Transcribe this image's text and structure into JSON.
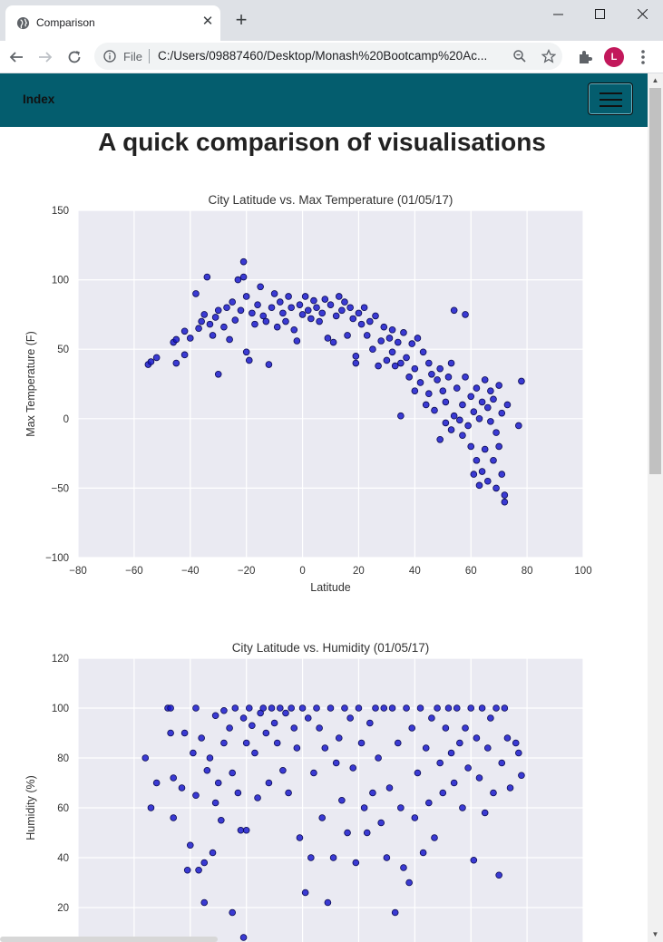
{
  "browser": {
    "tab_title": "Comparison",
    "tab_close": "✕",
    "new_tab": "+",
    "scheme_label": "File",
    "url": "C:/Users/09887460/Desktop/Monash%20Bootcamp%20Ac...",
    "profile_initial": "L"
  },
  "navbar": {
    "brand": "Index"
  },
  "page": {
    "title": "A quick comparison of visualisations"
  },
  "colors": {
    "navbar": "#045d6e",
    "plot_bg": "#eaeaf2",
    "marker": "#1414cc",
    "marker_edge": "#0a0a50"
  },
  "chart_data": [
    {
      "type": "scatter",
      "title": "City Latitude vs. Max Temperature (01/05/17)",
      "xlabel": "Latitude",
      "ylabel": "Max Temperature (F)",
      "xlim": [
        -80,
        100
      ],
      "ylim": [
        -100,
        150
      ],
      "xticks": [
        -80,
        -60,
        -40,
        -20,
        0,
        20,
        40,
        60,
        80,
        100
      ],
      "yticks": [
        -100,
        -50,
        0,
        50,
        100,
        150
      ],
      "xtick_labels": [
        "−80",
        "−60",
        "−40",
        "−20",
        "0",
        "20",
        "40",
        "60",
        "80",
        "100"
      ],
      "ytick_labels": [
        "−100",
        "−50",
        "0",
        "50",
        "100",
        "150"
      ],
      "grid": true,
      "points": [
        [
          -55,
          39
        ],
        [
          -54,
          41
        ],
        [
          -52,
          44
        ],
        [
          -46,
          55
        ],
        [
          -45,
          57
        ],
        [
          -45,
          40
        ],
        [
          -42,
          46
        ],
        [
          -42,
          63
        ],
        [
          -40,
          58
        ],
        [
          -38,
          90
        ],
        [
          -37,
          65
        ],
        [
          -36,
          70
        ],
        [
          -35,
          75
        ],
        [
          -34,
          102
        ],
        [
          -33,
          68
        ],
        [
          -32,
          60
        ],
        [
          -31,
          73
        ],
        [
          -30,
          32
        ],
        [
          -30,
          78
        ],
        [
          -28,
          66
        ],
        [
          -27,
          80
        ],
        [
          -26,
          57
        ],
        [
          -25,
          84
        ],
        [
          -24,
          71
        ],
        [
          -23,
          100
        ],
        [
          -22,
          78
        ],
        [
          -21,
          113
        ],
        [
          -21,
          102
        ],
        [
          -20,
          48
        ],
        [
          -20,
          88
        ],
        [
          -19,
          42
        ],
        [
          -18,
          76
        ],
        [
          -17,
          68
        ],
        [
          -16,
          82
        ],
        [
          -15,
          95
        ],
        [
          -14,
          74
        ],
        [
          -13,
          70
        ],
        [
          -12,
          39
        ],
        [
          -11,
          80
        ],
        [
          -10,
          90
        ],
        [
          -9,
          66
        ],
        [
          -8,
          84
        ],
        [
          -7,
          76
        ],
        [
          -6,
          70
        ],
        [
          -5,
          88
        ],
        [
          -4,
          80
        ],
        [
          -3,
          64
        ],
        [
          -2,
          56
        ],
        [
          -1,
          82
        ],
        [
          0,
          75
        ],
        [
          1,
          88
        ],
        [
          2,
          78
        ],
        [
          3,
          72
        ],
        [
          4,
          85
        ],
        [
          5,
          80
        ],
        [
          6,
          70
        ],
        [
          7,
          76
        ],
        [
          8,
          86
        ],
        [
          9,
          58
        ],
        [
          10,
          82
        ],
        [
          11,
          55
        ],
        [
          12,
          74
        ],
        [
          13,
          88
        ],
        [
          14,
          78
        ],
        [
          15,
          84
        ],
        [
          16,
          60
        ],
        [
          17,
          80
        ],
        [
          18,
          72
        ],
        [
          19,
          45
        ],
        [
          19,
          40
        ],
        [
          20,
          76
        ],
        [
          21,
          68
        ],
        [
          22,
          80
        ],
        [
          23,
          60
        ],
        [
          24,
          70
        ],
        [
          25,
          50
        ],
        [
          26,
          74
        ],
        [
          27,
          38
        ],
        [
          28,
          56
        ],
        [
          29,
          66
        ],
        [
          30,
          42
        ],
        [
          31,
          58
        ],
        [
          32,
          64
        ],
        [
          32,
          48
        ],
        [
          33,
          38
        ],
        [
          34,
          55
        ],
        [
          35,
          40
        ],
        [
          35,
          2
        ],
        [
          36,
          62
        ],
        [
          37,
          44
        ],
        [
          38,
          30
        ],
        [
          39,
          54
        ],
        [
          40,
          20
        ],
        [
          40,
          36
        ],
        [
          41,
          58
        ],
        [
          42,
          26
        ],
        [
          43,
          48
        ],
        [
          44,
          10
        ],
        [
          45,
          18
        ],
        [
          45,
          40
        ],
        [
          46,
          32
        ],
        [
          47,
          6
        ],
        [
          48,
          28
        ],
        [
          49,
          -15
        ],
        [
          49,
          36
        ],
        [
          50,
          20
        ],
        [
          51,
          -3
        ],
        [
          51,
          12
        ],
        [
          52,
          30
        ],
        [
          53,
          -8
        ],
        [
          53,
          40
        ],
        [
          54,
          78
        ],
        [
          54,
          2
        ],
        [
          55,
          22
        ],
        [
          56,
          -1
        ],
        [
          57,
          10
        ],
        [
          57,
          -12
        ],
        [
          58,
          75
        ],
        [
          58,
          30
        ],
        [
          59,
          -5
        ],
        [
          60,
          16
        ],
        [
          60,
          -20
        ],
        [
          61,
          -40
        ],
        [
          61,
          5
        ],
        [
          62,
          -30
        ],
        [
          62,
          22
        ],
        [
          63,
          -48
        ],
        [
          63,
          0
        ],
        [
          64,
          12
        ],
        [
          64,
          -38
        ],
        [
          65,
          28
        ],
        [
          65,
          -22
        ],
        [
          66,
          8
        ],
        [
          66,
          -45
        ],
        [
          67,
          -2
        ],
        [
          67,
          20
        ],
        [
          68,
          -30
        ],
        [
          68,
          14
        ],
        [
          69,
          -10
        ],
        [
          69,
          -50
        ],
        [
          70,
          -20
        ],
        [
          70,
          24
        ],
        [
          71,
          4
        ],
        [
          71,
          -40
        ],
        [
          72,
          -55
        ],
        [
          72,
          -60
        ],
        [
          73,
          10
        ],
        [
          77,
          -5
        ],
        [
          78,
          27
        ]
      ]
    },
    {
      "type": "scatter",
      "title": "City Latitude vs. Humidity (01/05/17)",
      "xlabel": "",
      "ylabel": "Humidity (%)",
      "xlim": [
        -80,
        100
      ],
      "ylim": [
        0,
        120
      ],
      "xticks": [
        -80,
        -60,
        -40,
        -20,
        0,
        20,
        40,
        60,
        80,
        100
      ],
      "yticks": [
        20,
        40,
        60,
        80,
        100,
        120
      ],
      "xtick_labels": [],
      "ytick_labels": [
        "20",
        "40",
        "60",
        "80",
        "100",
        "120"
      ],
      "grid": true,
      "points": [
        [
          -56,
          80
        ],
        [
          -54,
          60
        ],
        [
          -52,
          70
        ],
        [
          -48,
          100
        ],
        [
          -47,
          100
        ],
        [
          -47,
          90
        ],
        [
          -46,
          56
        ],
        [
          -46,
          72
        ],
        [
          -43,
          68
        ],
        [
          -42,
          90
        ],
        [
          -41,
          35
        ],
        [
          -40,
          45
        ],
        [
          -39,
          82
        ],
        [
          -38,
          100
        ],
        [
          -38,
          65
        ],
        [
          -37,
          35
        ],
        [
          -36,
          88
        ],
        [
          -35,
          38
        ],
        [
          -35,
          22
        ],
        [
          -34,
          75
        ],
        [
          -33,
          80
        ],
        [
          -32,
          42
        ],
        [
          -31,
          97
        ],
        [
          -31,
          62
        ],
        [
          -30,
          70
        ],
        [
          -29,
          55
        ],
        [
          -28,
          99
        ],
        [
          -28,
          86
        ],
        [
          -26,
          92
        ],
        [
          -25,
          74
        ],
        [
          -25,
          18
        ],
        [
          -24,
          100
        ],
        [
          -23,
          66
        ],
        [
          -22,
          51
        ],
        [
          -21,
          96
        ],
        [
          -21,
          8
        ],
        [
          -20,
          86
        ],
        [
          -20,
          51
        ],
        [
          -19,
          100
        ],
        [
          -18,
          93
        ],
        [
          -17,
          82
        ],
        [
          -16,
          64
        ],
        [
          -15,
          98
        ],
        [
          -14,
          100
        ],
        [
          -13,
          90
        ],
        [
          -12,
          70
        ],
        [
          -11,
          100
        ],
        [
          -10,
          94
        ],
        [
          -9,
          86
        ],
        [
          -8,
          100
        ],
        [
          -7,
          75
        ],
        [
          -6,
          98
        ],
        [
          -5,
          66
        ],
        [
          -4,
          100
        ],
        [
          -3,
          92
        ],
        [
          -2,
          84
        ],
        [
          -1,
          48
        ],
        [
          0,
          100
        ],
        [
          1,
          26
        ],
        [
          2,
          96
        ],
        [
          3,
          40
        ],
        [
          4,
          74
        ],
        [
          5,
          100
        ],
        [
          6,
          92
        ],
        [
          7,
          56
        ],
        [
          8,
          84
        ],
        [
          9,
          22
        ],
        [
          10,
          100
        ],
        [
          11,
          40
        ],
        [
          12,
          78
        ],
        [
          13,
          88
        ],
        [
          14,
          63
        ],
        [
          15,
          100
        ],
        [
          16,
          50
        ],
        [
          17,
          96
        ],
        [
          18,
          76
        ],
        [
          19,
          38
        ],
        [
          20,
          100
        ],
        [
          21,
          86
        ],
        [
          22,
          60
        ],
        [
          23,
          50
        ],
        [
          24,
          94
        ],
        [
          25,
          66
        ],
        [
          26,
          100
        ],
        [
          27,
          80
        ],
        [
          28,
          54
        ],
        [
          29,
          100
        ],
        [
          30,
          40
        ],
        [
          31,
          68
        ],
        [
          32,
          100
        ],
        [
          33,
          18
        ],
        [
          34,
          86
        ],
        [
          35,
          60
        ],
        [
          36,
          36
        ],
        [
          37,
          100
        ],
        [
          38,
          30
        ],
        [
          39,
          92
        ],
        [
          40,
          56
        ],
        [
          41,
          74
        ],
        [
          42,
          100
        ],
        [
          43,
          42
        ],
        [
          44,
          84
        ],
        [
          45,
          62
        ],
        [
          46,
          96
        ],
        [
          47,
          48
        ],
        [
          48,
          100
        ],
        [
          49,
          78
        ],
        [
          50,
          66
        ],
        [
          51,
          92
        ],
        [
          52,
          100
        ],
        [
          53,
          82
        ],
        [
          54,
          70
        ],
        [
          55,
          100
        ],
        [
          56,
          86
        ],
        [
          57,
          60
        ],
        [
          58,
          92
        ],
        [
          59,
          76
        ],
        [
          60,
          100
        ],
        [
          61,
          39
        ],
        [
          62,
          88
        ],
        [
          63,
          72
        ],
        [
          64,
          100
        ],
        [
          65,
          58
        ],
        [
          66,
          84
        ],
        [
          67,
          96
        ],
        [
          68,
          66
        ],
        [
          69,
          100
        ],
        [
          70,
          33
        ],
        [
          71,
          78
        ],
        [
          72,
          100
        ],
        [
          73,
          88
        ],
        [
          74,
          68
        ],
        [
          76,
          86
        ],
        [
          77,
          82
        ],
        [
          78,
          73
        ]
      ]
    }
  ]
}
